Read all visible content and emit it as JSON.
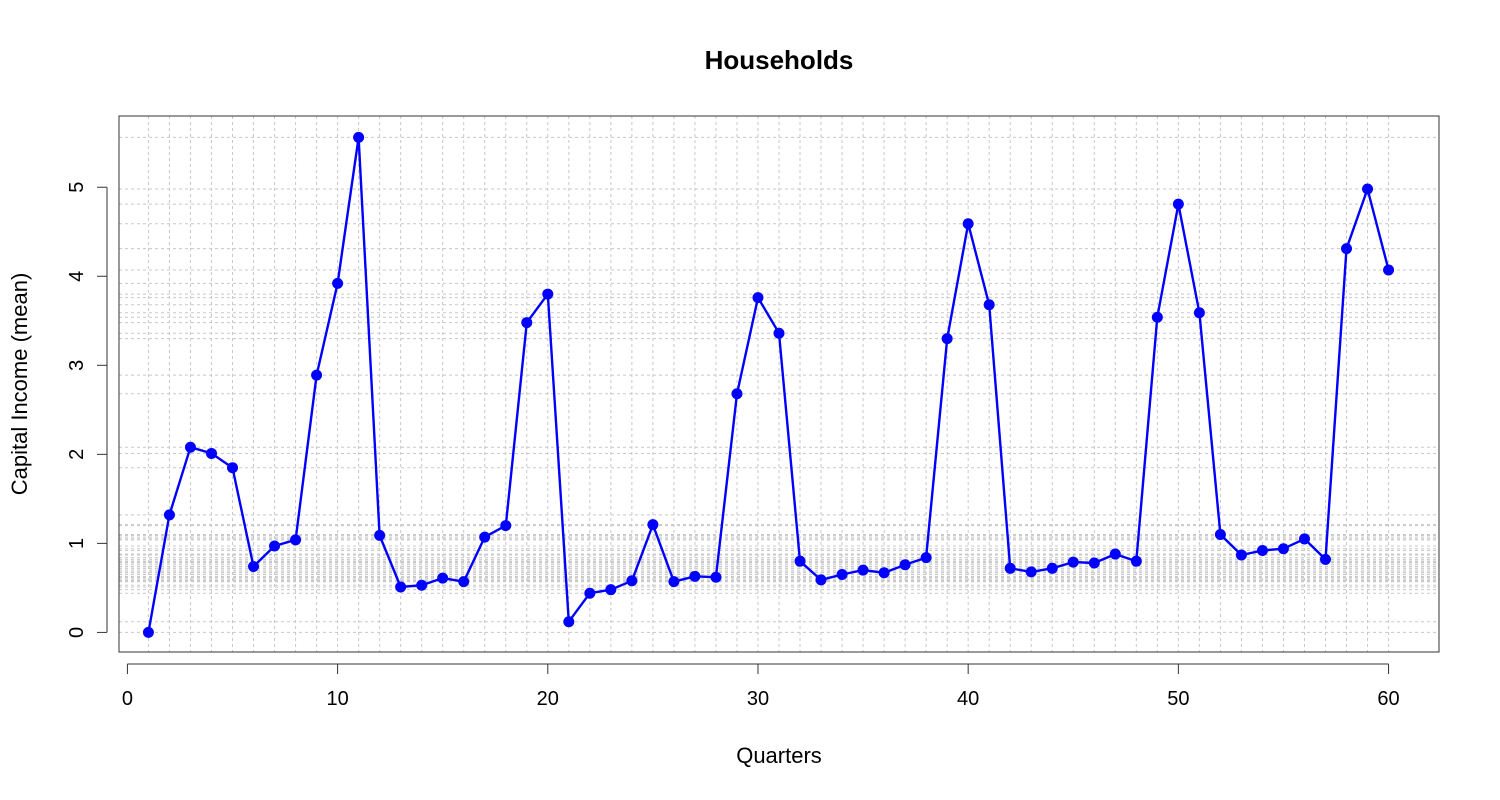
{
  "chart_data": {
    "type": "line",
    "title": "Households",
    "xlabel": "Quarters",
    "ylabel": "Capital Income (mean)",
    "xlim": [
      -0.4,
      62.4
    ],
    "ylim": [
      -0.22,
      5.8
    ],
    "xticks": [
      0,
      10,
      20,
      30,
      40,
      50,
      60
    ],
    "yticks": [
      0,
      1,
      2,
      3,
      4,
      5
    ],
    "grid": true,
    "grid_at_data_points": true,
    "series": [
      {
        "color": "#0000ff",
        "marker": "circle",
        "x": [
          1,
          2,
          3,
          4,
          5,
          6,
          7,
          8,
          9,
          10,
          11,
          12,
          13,
          14,
          15,
          16,
          17,
          18,
          19,
          20,
          21,
          22,
          23,
          24,
          25,
          26,
          27,
          28,
          29,
          30,
          31,
          32,
          33,
          34,
          35,
          36,
          37,
          38,
          39,
          40,
          41,
          42,
          43,
          44,
          45,
          46,
          47,
          48,
          49,
          50,
          51,
          52,
          53,
          54,
          55,
          56,
          57,
          58,
          59,
          60
        ],
        "values": [
          0.0,
          1.32,
          2.08,
          2.01,
          1.85,
          0.74,
          0.97,
          1.04,
          2.89,
          3.92,
          5.56,
          1.09,
          0.51,
          0.53,
          0.61,
          0.57,
          1.07,
          1.2,
          3.48,
          3.8,
          0.12,
          0.44,
          0.48,
          0.58,
          1.21,
          0.57,
          0.63,
          0.62,
          2.68,
          3.76,
          3.36,
          0.8,
          0.59,
          0.65,
          0.7,
          0.67,
          0.76,
          0.84,
          3.3,
          4.59,
          3.68,
          0.72,
          0.68,
          0.72,
          0.79,
          0.78,
          0.88,
          0.8,
          3.54,
          4.81,
          3.59,
          1.1,
          0.87,
          0.92,
          0.94,
          1.05,
          0.82,
          4.31,
          4.98,
          4.07
        ]
      }
    ]
  }
}
